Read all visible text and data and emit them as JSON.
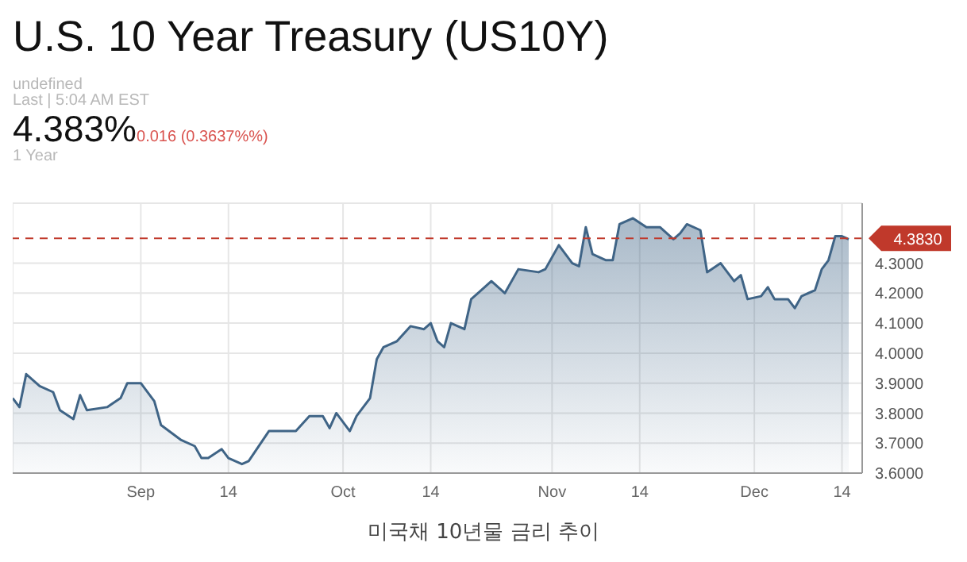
{
  "chart_data": {
    "type": "area",
    "title": "U.S. 10 Year Treasury (US10Y)",
    "annotations": [
      "undefined",
      "Last | 5:04 AM EST",
      "4.383%",
      "0.016 (0.3637%%)",
      "1 Year",
      "미국채 10년물 금리 추이"
    ],
    "x": [
      "--08-13",
      "--08-14",
      "--08-15",
      "--08-17",
      "--08-19",
      "--08-20",
      "--08-22",
      "--08-23",
      "--08-24",
      "--08-27",
      "--08-29",
      "--08-30",
      "--09-01",
      "--09-03",
      "--09-04",
      "--09-07",
      "--09-09",
      "--09-10",
      "--09-11",
      "--09-13",
      "--09-14",
      "--09-16",
      "--09-17",
      "--09-20",
      "--09-22",
      "--09-24",
      "--09-26",
      "--09-28",
      "--09-29",
      "--09-30",
      "--10-02",
      "--10-03",
      "--10-05",
      "--10-06",
      "--10-07",
      "--10-09",
      "--10-11",
      "--10-13",
      "--10-14",
      "--10-15",
      "--10-16",
      "--10-17",
      "--10-19",
      "--10-20",
      "--10-21",
      "--10-23",
      "--10-25",
      "--10-27",
      "--10-30",
      "--10-31",
      "--11-02",
      "--11-04",
      "--11-05",
      "--11-06",
      "--11-07",
      "--11-09",
      "--11-10",
      "--11-11",
      "--11-13",
      "--11-15",
      "--11-17",
      "--11-19",
      "--11-20",
      "--11-21",
      "--11-23",
      "--11-24",
      "--11-26",
      "--11-28",
      "--11-29",
      "--11-30",
      "--12-02",
      "--12-03",
      "--12-04",
      "--12-06",
      "--12-07",
      "--12-08",
      "--12-10",
      "--12-11",
      "--12-12",
      "--12-13",
      "--12-14",
      "--12-15"
    ],
    "series": [
      {
        "color": "#3f6486",
        "values": [
          3.85,
          3.82,
          3.93,
          3.89,
          3.87,
          3.81,
          3.78,
          3.86,
          3.81,
          3.82,
          3.85,
          3.9,
          3.9,
          3.84,
          3.76,
          3.71,
          3.69,
          3.65,
          3.65,
          3.68,
          3.65,
          3.63,
          3.64,
          3.74,
          3.74,
          3.74,
          3.79,
          3.79,
          3.75,
          3.8,
          3.74,
          3.79,
          3.85,
          3.98,
          4.02,
          4.04,
          4.09,
          4.08,
          4.1,
          4.04,
          4.02,
          4.1,
          4.08,
          4.18,
          4.2,
          4.24,
          4.2,
          4.28,
          4.27,
          4.28,
          4.36,
          4.3,
          4.29,
          4.42,
          4.33,
          4.31,
          4.31,
          4.43,
          4.45,
          4.42,
          4.42,
          4.38,
          4.4,
          4.43,
          4.41,
          4.27,
          4.3,
          4.24,
          4.26,
          4.18,
          4.19,
          4.22,
          4.18,
          4.18,
          4.15,
          4.19,
          4.21,
          4.28,
          4.31,
          4.39,
          4.39,
          4.38
        ]
      }
    ],
    "xlim": [
      "--08-13",
      "--12-17"
    ],
    "xticks": [
      {
        "value": "--09-01",
        "label": "Sep"
      },
      {
        "value": "--09-14",
        "label": "14"
      },
      {
        "value": "--10-01",
        "label": "Oct"
      },
      {
        "value": "--10-14",
        "label": "14"
      },
      {
        "value": "--11-01",
        "label": "Nov"
      },
      {
        "value": "--11-14",
        "label": "14"
      },
      {
        "value": "--12-01",
        "label": "Dec"
      },
      {
        "value": "--12-14",
        "label": "14"
      }
    ],
    "ylim": [
      3.6,
      4.5
    ],
    "yticks": [
      {
        "value": 3.6,
        "label": "3.6000"
      },
      {
        "value": 3.7,
        "label": "3.7000"
      },
      {
        "value": 3.8,
        "label": "3.8000"
      },
      {
        "value": 3.9,
        "label": "3.9000"
      },
      {
        "value": 4.0,
        "label": "4.0000"
      },
      {
        "value": 4.1,
        "label": "4.1000"
      },
      {
        "value": 4.2,
        "label": "4.2000"
      },
      {
        "value": 4.3,
        "label": "4.3000"
      }
    ],
    "ref_lines": [
      {
        "axis": "y",
        "value": 4.383,
        "label": "4.3830",
        "color": "#c0392b",
        "line_style": "dashed"
      }
    ],
    "grid": true,
    "legend": false,
    "marker": "none",
    "line_style": "solid"
  }
}
